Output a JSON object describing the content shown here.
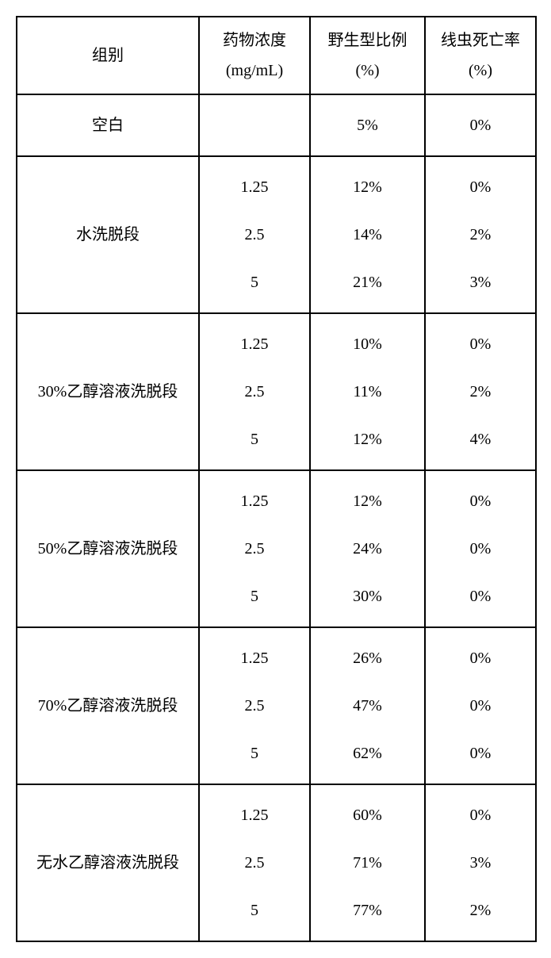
{
  "table": {
    "headers": {
      "group": "组别",
      "conc_l1": "药物浓度",
      "conc_l2": "(mg/mL)",
      "wild_l1": "野生型比例",
      "wild_l2": "(%)",
      "death_l1": "线虫死亡率",
      "death_l2": "(%)"
    },
    "blank": {
      "label": "空白",
      "conc": "",
      "wild": "5%",
      "death": "0%"
    },
    "groups": [
      {
        "label": "水洗脱段",
        "conc": [
          "1.25",
          "2.5",
          "5"
        ],
        "wild": [
          "12%",
          "14%",
          "21%"
        ],
        "death": [
          "0%",
          "2%",
          "3%"
        ]
      },
      {
        "label": "30%乙醇溶液洗脱段",
        "conc": [
          "1.25",
          "2.5",
          "5"
        ],
        "wild": [
          "10%",
          "11%",
          "12%"
        ],
        "death": [
          "0%",
          "2%",
          "4%"
        ]
      },
      {
        "label": "50%乙醇溶液洗脱段",
        "conc": [
          "1.25",
          "2.5",
          "5"
        ],
        "wild": [
          "12%",
          "24%",
          "30%"
        ],
        "death": [
          "0%",
          "0%",
          "0%"
        ]
      },
      {
        "label": "70%乙醇溶液洗脱段",
        "conc": [
          "1.25",
          "2.5",
          "5"
        ],
        "wild": [
          "26%",
          "47%",
          "62%"
        ],
        "death": [
          "0%",
          "0%",
          "0%"
        ]
      },
      {
        "label": "无水乙醇溶液洗脱段",
        "conc": [
          "1.25",
          "2.5",
          "5"
        ],
        "wild": [
          "60%",
          "71%",
          "77%"
        ],
        "death": [
          "0%",
          "3%",
          "2%"
        ]
      }
    ]
  }
}
